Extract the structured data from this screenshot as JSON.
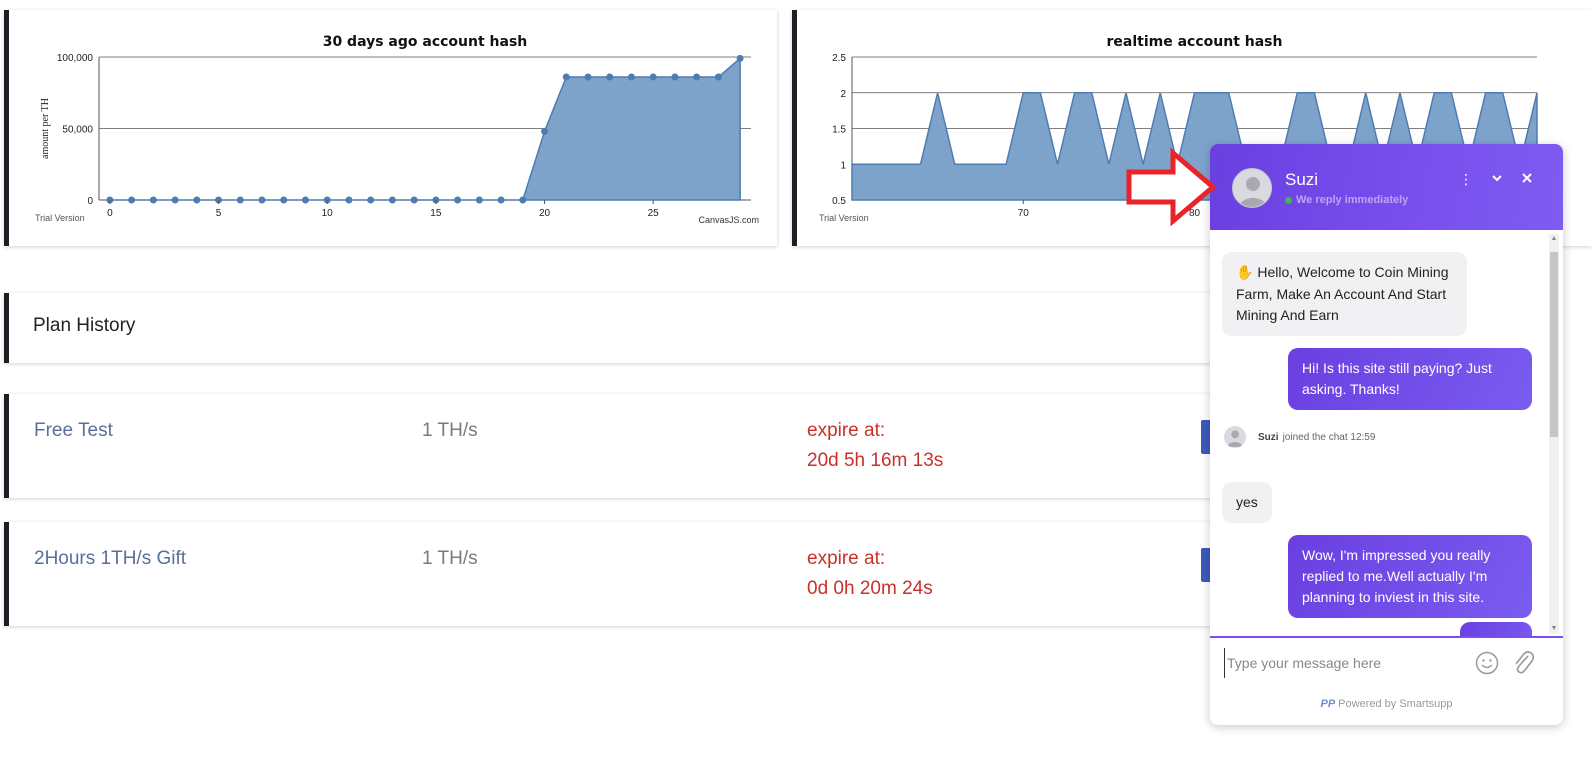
{
  "chart1": {
    "title": "30 days ago account hash",
    "ylabel": "amount per TH",
    "watermark": "Trial Version",
    "credit": "CanvasJS.com",
    "y_ticks": [
      "100,000",
      "50,000",
      "0"
    ],
    "x_ticks": [
      "0",
      "5",
      "10",
      "15",
      "20",
      "25"
    ]
  },
  "chart2": {
    "title": "realtime account hash",
    "watermark": "Trial Version",
    "y_ticks": [
      "2.5",
      "2",
      "1.5",
      "1",
      "0.5"
    ],
    "x_ticks": [
      "70",
      "80"
    ]
  },
  "chart_data": [
    {
      "type": "area",
      "title": "30 days ago account hash",
      "ylabel": "amount per TH",
      "xlim": [
        -0.5,
        29.5
      ],
      "ylim": [
        0,
        100000
      ],
      "grid": true,
      "x": [
        0,
        1,
        2,
        3,
        4,
        5,
        6,
        7,
        8,
        9,
        10,
        11,
        12,
        13,
        14,
        15,
        16,
        17,
        18,
        19,
        20,
        21,
        22,
        23,
        24,
        25,
        26,
        27,
        28,
        29
      ],
      "values": [
        0,
        0,
        0,
        0,
        0,
        0,
        0,
        0,
        0,
        0,
        0,
        0,
        0,
        0,
        0,
        0,
        0,
        0,
        0,
        0,
        48000,
        86000,
        86000,
        86000,
        86000,
        86000,
        86000,
        86000,
        86000,
        99000
      ]
    },
    {
      "type": "area",
      "title": "realtime account hash",
      "xlim": [
        60,
        100
      ],
      "ylim": [
        0.5,
        2.5
      ],
      "grid": true,
      "x": [
        60,
        61,
        62,
        63,
        64,
        65,
        66,
        67,
        68,
        69,
        70,
        71,
        72,
        73,
        74,
        75,
        76,
        77,
        78,
        79,
        80,
        81,
        82,
        83,
        84,
        85,
        86,
        87,
        88,
        89,
        90,
        91,
        92,
        93,
        94,
        95,
        96,
        97,
        98,
        99,
        100
      ],
      "values": [
        1,
        1,
        1,
        1,
        1,
        2,
        1,
        1,
        1,
        1,
        2,
        2,
        1,
        2,
        2,
        1,
        2,
        1,
        2,
        1,
        2,
        2,
        2,
        1,
        1,
        1,
        2,
        2,
        1,
        1,
        2,
        1,
        2,
        1,
        2,
        2,
        1,
        2,
        2,
        1,
        2
      ]
    }
  ],
  "plan_history": {
    "title": "Plan History"
  },
  "plans": [
    {
      "name": "Free Test",
      "speed": "1 TH/s",
      "expire_label": "expire at:",
      "expire_value": "20d 5h 16m 13s"
    },
    {
      "name": "2Hours 1TH/s Gift",
      "speed": "1 TH/s",
      "expire_label": "expire at:",
      "expire_value": "0d 0h 20m 24s"
    }
  ],
  "chat": {
    "agent_name": "Suzi",
    "status": "We reply immediately",
    "messages": {
      "welcome": "Hello, Welcome to Coin Mining Farm, Make An Account And Start Mining And Earn",
      "user1": "Hi! Is this site still paying? Just asking. Thanks!",
      "joined_name": "Suzi",
      "joined_text": "joined the chat 12:59",
      "reply": "yes",
      "user2": "Wow, I'm impressed you really replied to me.Well actually I'm planning to inviest in this site."
    },
    "input_placeholder": "Type your message here",
    "powered_logo": "PP",
    "powered_by": "Powered by Smartsupp",
    "icons": {
      "menu": "more-vertical-icon",
      "minimize": "chevron-down-icon",
      "close": "close-icon",
      "emoji": "smiley-icon",
      "attach": "paperclip-icon",
      "wave": "waving-hand-icon"
    },
    "accent_color": "#7a4fee"
  },
  "annotation": {
    "arrow_color": "#e8232a"
  }
}
